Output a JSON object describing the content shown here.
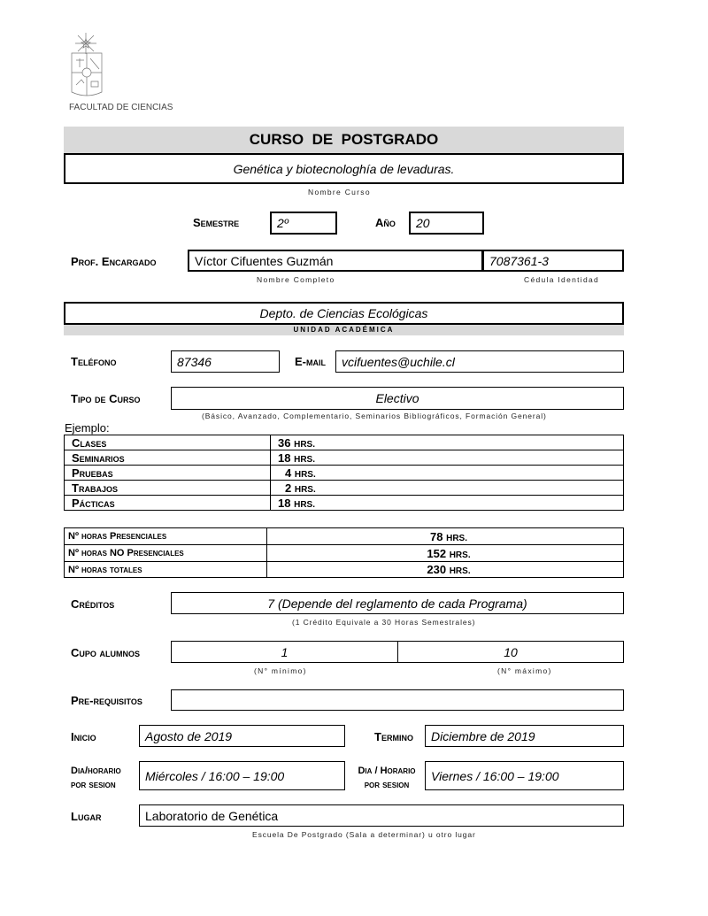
{
  "header": {
    "faculty": "FACULTAD DE CIENCIAS",
    "title": "CURSO  DE  POSTGRADO"
  },
  "course": {
    "name": "Genética y biotecnologhía de levaduras.",
    "name_caption": "Nombre  Curso"
  },
  "semester": {
    "label": "Semestre",
    "value": "2º"
  },
  "year": {
    "label": "Año",
    "value": "20"
  },
  "professor": {
    "label": "Prof. Encargado",
    "name": "Víctor Cifuentes Guzmán",
    "id": "7087361-3",
    "name_caption": "Nombre Completo",
    "id_caption": "Cédula Identidad"
  },
  "unit": {
    "value": "Depto. de Ciencias Ecológicas",
    "caption": "UNIDAD  ACADÉMICA"
  },
  "phone": {
    "label": "Teléfono",
    "value": "87346"
  },
  "email": {
    "label": "E-mail",
    "value": "vcifuentes@uchile.cl"
  },
  "course_type": {
    "label": "Tipo de Curso",
    "value": "Electivo",
    "caption": "(Básico, Avanzado, Complementario, Seminarios Bibliográficos, Formación General)"
  },
  "example_label": "Ejemplo:",
  "hours": [
    {
      "label": "Clases",
      "value": "36",
      "unit": "hrs."
    },
    {
      "label": "Seminarios",
      "value": "18",
      "unit": "hrs."
    },
    {
      "label": "Pruebas",
      "value": "4",
      "unit": "hrs."
    },
    {
      "label": "Trabajos",
      "value": "2",
      "unit": "hrs."
    },
    {
      "label": "Pácticas",
      "value": "18",
      "unit": "hrs."
    }
  ],
  "totals": [
    {
      "prefix": "Nº",
      "label": "horas Presenciales",
      "value": "78",
      "unit": "hrs."
    },
    {
      "prefix": "Nº",
      "label": "horas NO Presenciales",
      "value": "152",
      "unit": "hrs."
    },
    {
      "prefix": "Nº",
      "label": "horas totales",
      "value": "230",
      "unit": "hrs."
    }
  ],
  "credits": {
    "label": "Créditos",
    "value": "7 (Depende del reglamento de cada Programa)",
    "caption": "(1 Crédito Equivale a 30 Horas Semestrales)"
  },
  "quota": {
    "label": "Cupo alumnos",
    "min": "1",
    "max": "10",
    "min_caption": "(N° mínimo)",
    "max_caption": "(N° máximo)"
  },
  "prereq": {
    "label": "Pre-requisitos",
    "value": ""
  },
  "start": {
    "label": "Inicio",
    "value": "Agosto de 2019"
  },
  "end": {
    "label": "Termino",
    "value": "Diciembre de 2019"
  },
  "schedule1": {
    "label1": "Dia/horario",
    "label2": "por sesion",
    "value": "Miércoles / 16:00 – 19:00"
  },
  "schedule2": {
    "label1": "Dia / Horario",
    "label2": "por sesion",
    "value": "Viernes / 16:00 – 19:00"
  },
  "place": {
    "label": "Lugar",
    "value": "Laboratorio de Genética",
    "caption": "Escuela De Postgrado (Sala a determinar) u otro lugar"
  }
}
